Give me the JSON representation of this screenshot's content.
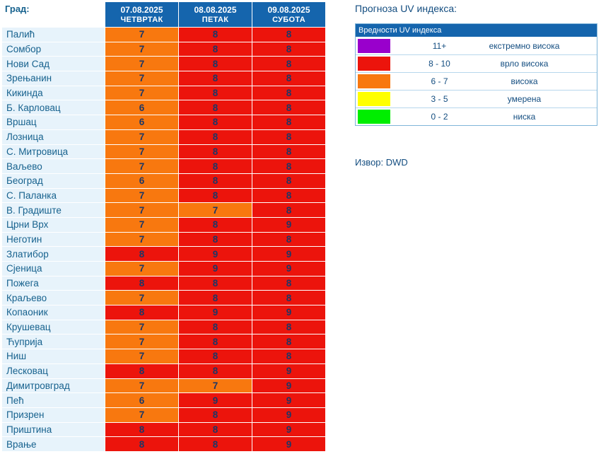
{
  "chart_data": {
    "type": "table",
    "title": "Прогноза UV индекса:",
    "city_column_header": "Град:",
    "columns": [
      {
        "date": "07.08.2025",
        "day": "ЧЕТВРТАК"
      },
      {
        "date": "08.08.2025",
        "day": "ПЕТАК"
      },
      {
        "date": "09.08.2025",
        "day": "СУБОТА"
      }
    ],
    "rows": [
      {
        "city": "Палић",
        "values": [
          7,
          8,
          8
        ]
      },
      {
        "city": "Сомбор",
        "values": [
          7,
          8,
          8
        ]
      },
      {
        "city": "Нови Сад",
        "values": [
          7,
          8,
          8
        ]
      },
      {
        "city": "Зрењанин",
        "values": [
          7,
          8,
          8
        ]
      },
      {
        "city": "Кикинда",
        "values": [
          7,
          8,
          8
        ]
      },
      {
        "city": "Б. Карловац",
        "values": [
          6,
          8,
          8
        ]
      },
      {
        "city": "Вршац",
        "values": [
          6,
          8,
          8
        ]
      },
      {
        "city": "Лозница",
        "values": [
          7,
          8,
          8
        ]
      },
      {
        "city": "С. Митровица",
        "values": [
          7,
          8,
          8
        ]
      },
      {
        "city": "Ваљево",
        "values": [
          7,
          8,
          8
        ]
      },
      {
        "city": "Београд",
        "values": [
          6,
          8,
          8
        ]
      },
      {
        "city": "С. Паланка",
        "values": [
          7,
          8,
          8
        ]
      },
      {
        "city": "В. Градиште",
        "values": [
          7,
          7,
          8
        ]
      },
      {
        "city": "Црни Врх",
        "values": [
          7,
          8,
          9
        ]
      },
      {
        "city": "Неготин",
        "values": [
          7,
          8,
          8
        ]
      },
      {
        "city": "Златибор",
        "values": [
          8,
          9,
          9
        ]
      },
      {
        "city": "Сјеница",
        "values": [
          7,
          9,
          9
        ]
      },
      {
        "city": "Пожега",
        "values": [
          8,
          8,
          8
        ]
      },
      {
        "city": "Краљево",
        "values": [
          7,
          8,
          8
        ]
      },
      {
        "city": "Копаоник",
        "values": [
          8,
          9,
          9
        ]
      },
      {
        "city": "Крушевац",
        "values": [
          7,
          8,
          8
        ]
      },
      {
        "city": "Ћуприја",
        "values": [
          7,
          8,
          8
        ]
      },
      {
        "city": "Ниш",
        "values": [
          7,
          8,
          8
        ]
      },
      {
        "city": "Лесковац",
        "values": [
          8,
          8,
          9
        ]
      },
      {
        "city": "Димитровград",
        "values": [
          7,
          7,
          9
        ]
      },
      {
        "city": "Пећ",
        "values": [
          6,
          9,
          9
        ]
      },
      {
        "city": "Призрен",
        "values": [
          7,
          8,
          9
        ]
      },
      {
        "city": "Приштина",
        "values": [
          8,
          8,
          9
        ]
      },
      {
        "city": "Врање",
        "values": [
          8,
          8,
          9
        ]
      }
    ],
    "legend": {
      "header": "Вредности UV индекса",
      "items": [
        {
          "range": "11+",
          "label": "екстремно висока",
          "color": "#9900cc",
          "min": 11
        },
        {
          "range": "8 - 10",
          "label": "врло висока",
          "color": "#ec140c",
          "min": 8
        },
        {
          "range": "6 - 7",
          "label": "висока",
          "color": "#f8780f",
          "min": 6
        },
        {
          "range": "3 - 5",
          "label": "умерена",
          "color": "#ffff00",
          "min": 3
        },
        {
          "range": "0 - 2",
          "label": "ниска",
          "color": "#00ee00",
          "min": 0
        }
      ]
    },
    "source": "Извор: DWD"
  },
  "colors": {
    "header_blue": "#1565ad",
    "city_cell_bg": "#e7f3fb",
    "city_text": "#17628e",
    "value_text": "#1d3766",
    "legend_text": "#134d80",
    "legend_border": "#7fb5d9",
    "legend_row_border": "#b7d7ec",
    "page_bg": "#ffffff"
  }
}
